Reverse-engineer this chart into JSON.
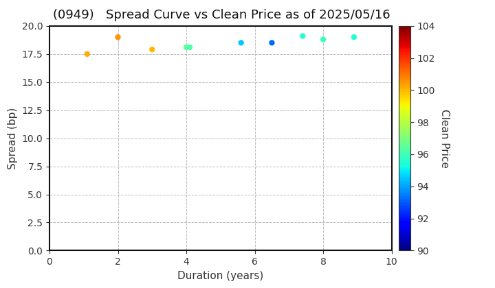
{
  "title": "(0949)   Spread Curve vs Clean Price as of 2025/05/16",
  "xlabel": "Duration (years)",
  "ylabel": "Spread (bp)",
  "colorbar_label": "Clean Price",
  "xlim": [
    0,
    10
  ],
  "ylim": [
    0.0,
    20.0
  ],
  "yticks": [
    0.0,
    2.5,
    5.0,
    7.5,
    10.0,
    12.5,
    15.0,
    17.5,
    20.0
  ],
  "xticks": [
    0,
    2,
    4,
    6,
    8,
    10
  ],
  "colorbar_min": 90,
  "colorbar_max": 104,
  "colorbar_ticks": [
    90,
    92,
    94,
    96,
    98,
    100,
    102,
    104
  ],
  "points": [
    {
      "duration": 1.1,
      "spread": 17.5,
      "price": 100.2
    },
    {
      "duration": 2.0,
      "spread": 19.0,
      "price": 100.5
    },
    {
      "duration": 3.0,
      "spread": 17.9,
      "price": 100.0
    },
    {
      "duration": 4.0,
      "spread": 18.1,
      "price": 96.5
    },
    {
      "duration": 4.1,
      "spread": 18.1,
      "price": 96.2
    },
    {
      "duration": 5.6,
      "spread": 18.5,
      "price": 94.5
    },
    {
      "duration": 6.5,
      "spread": 18.5,
      "price": 93.2
    },
    {
      "duration": 7.4,
      "spread": 19.1,
      "price": 95.5
    },
    {
      "duration": 8.0,
      "spread": 18.8,
      "price": 95.8
    },
    {
      "duration": 8.9,
      "spread": 19.0,
      "price": 95.5
    }
  ],
  "background_color": "#ffffff",
  "grid_color": "#aaaaaa",
  "title_fontsize": 13,
  "label_fontsize": 11,
  "tick_fontsize": 10,
  "marker_size": 25,
  "colormap": "jet"
}
